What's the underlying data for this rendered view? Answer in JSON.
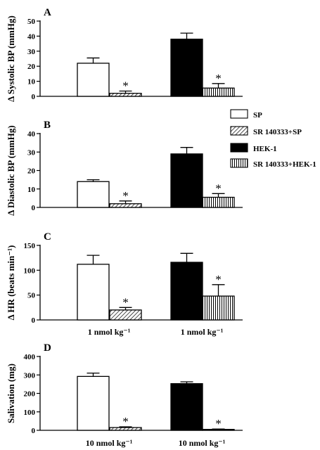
{
  "figure_colors": {
    "sp": "#ffffff",
    "hek1": "#000000",
    "stroke": "#000000"
  },
  "legend": [
    {
      "label": "SP",
      "pattern": "white"
    },
    {
      "label": "SR 140333+SP",
      "pattern": "diagonal"
    },
    {
      "label": "HEK-1",
      "pattern": "black"
    },
    {
      "label": "SR 140333+HEK-1",
      "pattern": "vertical"
    }
  ],
  "chart_data": [
    {
      "type": "bar",
      "panel": "A",
      "ylabel": "Δ Systolic BP (mmHg)",
      "ylim": [
        0,
        50
      ],
      "yticks": [
        0,
        10,
        20,
        30,
        40,
        50
      ],
      "dose_labels": [],
      "series": [
        {
          "name": "SP",
          "values": [
            22
          ],
          "errors": [
            3.5
          ],
          "significant": [
            false
          ]
        },
        {
          "name": "SR 140333+SP",
          "values": [
            2
          ],
          "errors": [
            1.5
          ],
          "significant": [
            true
          ]
        },
        {
          "name": "HEK-1",
          "values": [
            38
          ],
          "errors": [
            4
          ],
          "significant": [
            false
          ]
        },
        {
          "name": "SR 140333+HEK-1",
          "values": [
            5.5
          ],
          "errors": [
            3
          ],
          "significant": [
            true
          ]
        }
      ]
    },
    {
      "type": "bar",
      "panel": "B",
      "ylabel": "Δ Diastolic BP (mmHg)",
      "ylim": [
        0,
        40
      ],
      "yticks": [
        0,
        10,
        20,
        30,
        40
      ],
      "dose_labels": [],
      "series": [
        {
          "name": "SP",
          "values": [
            14
          ],
          "errors": [
            1
          ],
          "significant": [
            false
          ]
        },
        {
          "name": "SR 140333+SP",
          "values": [
            2
          ],
          "errors": [
            1.5
          ],
          "significant": [
            true
          ]
        },
        {
          "name": "HEK-1",
          "values": [
            29
          ],
          "errors": [
            3.5
          ],
          "significant": [
            false
          ]
        },
        {
          "name": "SR 140333+HEK-1",
          "values": [
            5.5
          ],
          "errors": [
            2
          ],
          "significant": [
            true
          ]
        }
      ]
    },
    {
      "type": "bar",
      "panel": "C",
      "ylabel": "Δ HR (beats min⁻¹)",
      "ylim": [
        0,
        150
      ],
      "yticks": [
        0,
        50,
        100,
        150
      ],
      "dose_labels": [
        "1 nmol kg⁻¹",
        "1 nmol kg⁻¹"
      ],
      "series": [
        {
          "name": "SP",
          "values": [
            112
          ],
          "errors": [
            18
          ],
          "significant": [
            false
          ]
        },
        {
          "name": "SR 140333+SP",
          "values": [
            20
          ],
          "errors": [
            5
          ],
          "significant": [
            true
          ]
        },
        {
          "name": "HEK-1",
          "values": [
            116
          ],
          "errors": [
            18
          ],
          "significant": [
            false
          ]
        },
        {
          "name": "SR 140333+HEK-1",
          "values": [
            48
          ],
          "errors": [
            23
          ],
          "significant": [
            true
          ]
        }
      ]
    },
    {
      "type": "bar",
      "panel": "D",
      "ylabel": "Salivation (mg)",
      "ylim": [
        0,
        400
      ],
      "yticks": [
        0,
        100,
        200,
        300,
        400
      ],
      "dose_labels": [
        "10 nmol kg⁻¹",
        "10 nmol kg⁻¹"
      ],
      "series": [
        {
          "name": "SP",
          "values": [
            292
          ],
          "errors": [
            18
          ],
          "significant": [
            false
          ]
        },
        {
          "name": "SR 140333+SP",
          "values": [
            15
          ],
          "errors": [
            4
          ],
          "significant": [
            true
          ]
        },
        {
          "name": "HEK-1",
          "values": [
            253
          ],
          "errors": [
            10
          ],
          "significant": [
            false
          ]
        },
        {
          "name": "SR 140333+HEK-1",
          "values": [
            5
          ],
          "errors": [
            2
          ],
          "significant": [
            true
          ]
        }
      ]
    }
  ]
}
